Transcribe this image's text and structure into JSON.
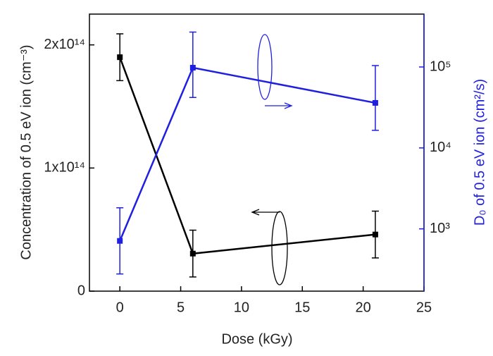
{
  "chart_data": {
    "type": "line",
    "x_label": "Dose (kGy)",
    "y_label": "Concentration of 0.5 eV ion (cm⁻³)",
    "y2_label": "D₀ of 0.5 eV ion (cm²/s)",
    "xlim": [
      -2.5,
      25
    ],
    "xticks": [
      0,
      5,
      10,
      15,
      20,
      25
    ],
    "ylim": [
      0,
      225000000000000.0
    ],
    "yticks": [
      0,
      {
        "value": 100000000000000.0,
        "label": "1x10¹⁴"
      },
      {
        "value": 200000000000000.0,
        "label": "2x10¹⁴"
      }
    ],
    "y2lim": [
      170,
      450000
    ],
    "y2scale": "log",
    "y2ticks": [
      {
        "value": 1000,
        "label": "10³"
      },
      {
        "value": 10000,
        "label": "10⁴"
      },
      {
        "value": 100000,
        "label": "10⁵"
      }
    ],
    "y2color": "#1f1fe0",
    "series": [
      {
        "name": "Concentration",
        "color": "#000000",
        "x": [
          0,
          6,
          21
        ],
        "values": [
          190000000000000.0,
          30500000000000.0,
          46000000000000.0
        ],
        "errors": [
          19000000000000.0,
          19000000000000.0,
          19000000000000.0
        ]
      },
      {
        "name": "D0",
        "color": "#1f1fe0",
        "axis": "y2",
        "x": [
          0,
          6,
          21
        ],
        "values": [
          710,
          98000,
          36000
        ],
        "error_low": [
          277,
          42000,
          16500
        ],
        "error_high": [
          1820,
          270000,
          104000
        ]
      }
    ]
  }
}
